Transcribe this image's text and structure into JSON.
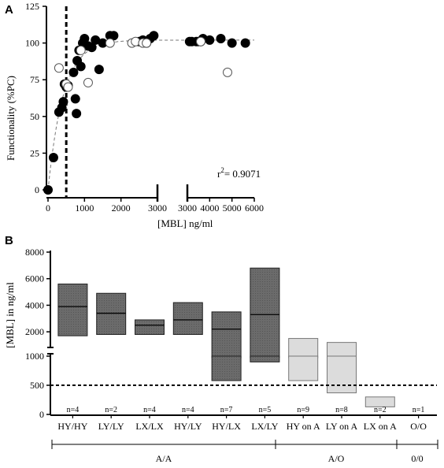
{
  "panel_a": {
    "letter": "A",
    "xlabel": "[MBL] ng/ml",
    "ylabel": "Functionality (%PC)",
    "r2_label": "r²= 0.9071",
    "r2_base": "r",
    "r2_sup": "2",
    "r2_rest": "= 0.9071",
    "yticks": [
      "0",
      "25",
      "50",
      "75",
      "100",
      "125"
    ],
    "xticks_left": [
      "0",
      "1000",
      "2000",
      "3000"
    ],
    "xticks_right": [
      "3000",
      "4000",
      "5000",
      "6000"
    ]
  },
  "panel_b": {
    "letter": "B",
    "ylabel": "[MBL] in ng/ml",
    "yticks_upper": [
      "2000",
      "4000",
      "6000",
      "8000"
    ],
    "yticks_lower": [
      "0",
      "500",
      "1000"
    ],
    "groups": [
      "A/A",
      "A/O",
      "0/0"
    ]
  },
  "chart_data": [
    {
      "type": "scatter",
      "title": "",
      "xlabel": "[MBL] ng/ml",
      "ylabel": "Functionality (%PC)",
      "xlim_segments": [
        [
          0,
          3000
        ],
        [
          3000,
          6000
        ]
      ],
      "ylim": [
        0,
        125
      ],
      "threshold_x": 500,
      "fit": "saturating curve (dashed)",
      "r2": 0.9071,
      "series": [
        {
          "marker": "filled",
          "points": [
            [
              0,
              0
            ],
            [
              150,
              22
            ],
            [
              300,
              53
            ],
            [
              380,
              56
            ],
            [
              420,
              60
            ],
            [
              450,
              72
            ],
            [
              500,
              70
            ],
            [
              550,
              71
            ],
            [
              700,
              80
            ],
            [
              750,
              62
            ],
            [
              780,
              52
            ],
            [
              800,
              88
            ],
            [
              850,
              95
            ],
            [
              900,
              84
            ],
            [
              950,
              100
            ],
            [
              1000,
              103
            ],
            [
              1100,
              98
            ],
            [
              1200,
              97
            ],
            [
              1300,
              102
            ],
            [
              1400,
              82
            ],
            [
              1500,
              100
            ],
            [
              1700,
              105
            ],
            [
              1800,
              105
            ],
            [
              2500,
              101
            ],
            [
              2600,
              102
            ],
            [
              2700,
              100
            ],
            [
              2800,
              103
            ],
            [
              2900,
              105
            ],
            [
              3100,
              101
            ],
            [
              3200,
              101
            ],
            [
              3400,
              101
            ],
            [
              3500,
              101
            ],
            [
              3600,
              101
            ],
            [
              3700,
              103
            ],
            [
              4000,
              102
            ],
            [
              4500,
              103
            ],
            [
              5000,
              100
            ],
            [
              5600,
              100
            ]
          ]
        },
        {
          "marker": "open",
          "points": [
            [
              300,
              83
            ],
            [
              500,
              72
            ],
            [
              550,
              70
            ],
            [
              900,
              95
            ],
            [
              1100,
              73
            ],
            [
              1700,
              100
            ],
            [
              2300,
              100
            ],
            [
              2400,
              101
            ],
            [
              2600,
              100
            ],
            [
              2700,
              100
            ],
            [
              3600,
              101
            ],
            [
              4800,
              80
            ]
          ]
        }
      ]
    },
    {
      "type": "bar",
      "subtype": "floating bar (min to max, median line)",
      "title": "",
      "ylabel": "[MBL] in ng/ml",
      "yaxis": "split: 0-1000 linear, 1000-8000 compressed",
      "threshold_y": 500,
      "categories": [
        "HY/HY",
        "LY/LY",
        "LX/LX",
        "HY/LY",
        "HY/LX",
        "LX/LY",
        "HY on A",
        "LY on A",
        "LX on A",
        "O/O"
      ],
      "n_labels": [
        "n=4",
        "n=2",
        "n=4",
        "n=4",
        "n=7",
        "n=5",
        "n=9",
        "n=8",
        "n=2",
        "n=1"
      ],
      "series": [
        {
          "name": "",
          "min": [
            1700,
            1800,
            1800,
            1800,
            580,
            900,
            580,
            370,
            130,
            0
          ],
          "max": [
            5600,
            4900,
            2900,
            4200,
            3500,
            6800,
            1500,
            1200,
            300,
            0
          ],
          "median": [
            3900,
            3400,
            2500,
            2900,
            2200,
            3300,
            null,
            null,
            null,
            null
          ]
        }
      ],
      "group_spans": [
        {
          "label": "A/A",
          "categories": [
            "HY/HY",
            "LY/LY",
            "LX/LX",
            "HY/LY",
            "HY/LX",
            "LX/LY"
          ]
        },
        {
          "label": "A/O",
          "categories": [
            "HY on A",
            "LY on A",
            "LX on A"
          ]
        },
        {
          "label": "0/0",
          "categories": [
            "O/O"
          ]
        }
      ]
    }
  ]
}
